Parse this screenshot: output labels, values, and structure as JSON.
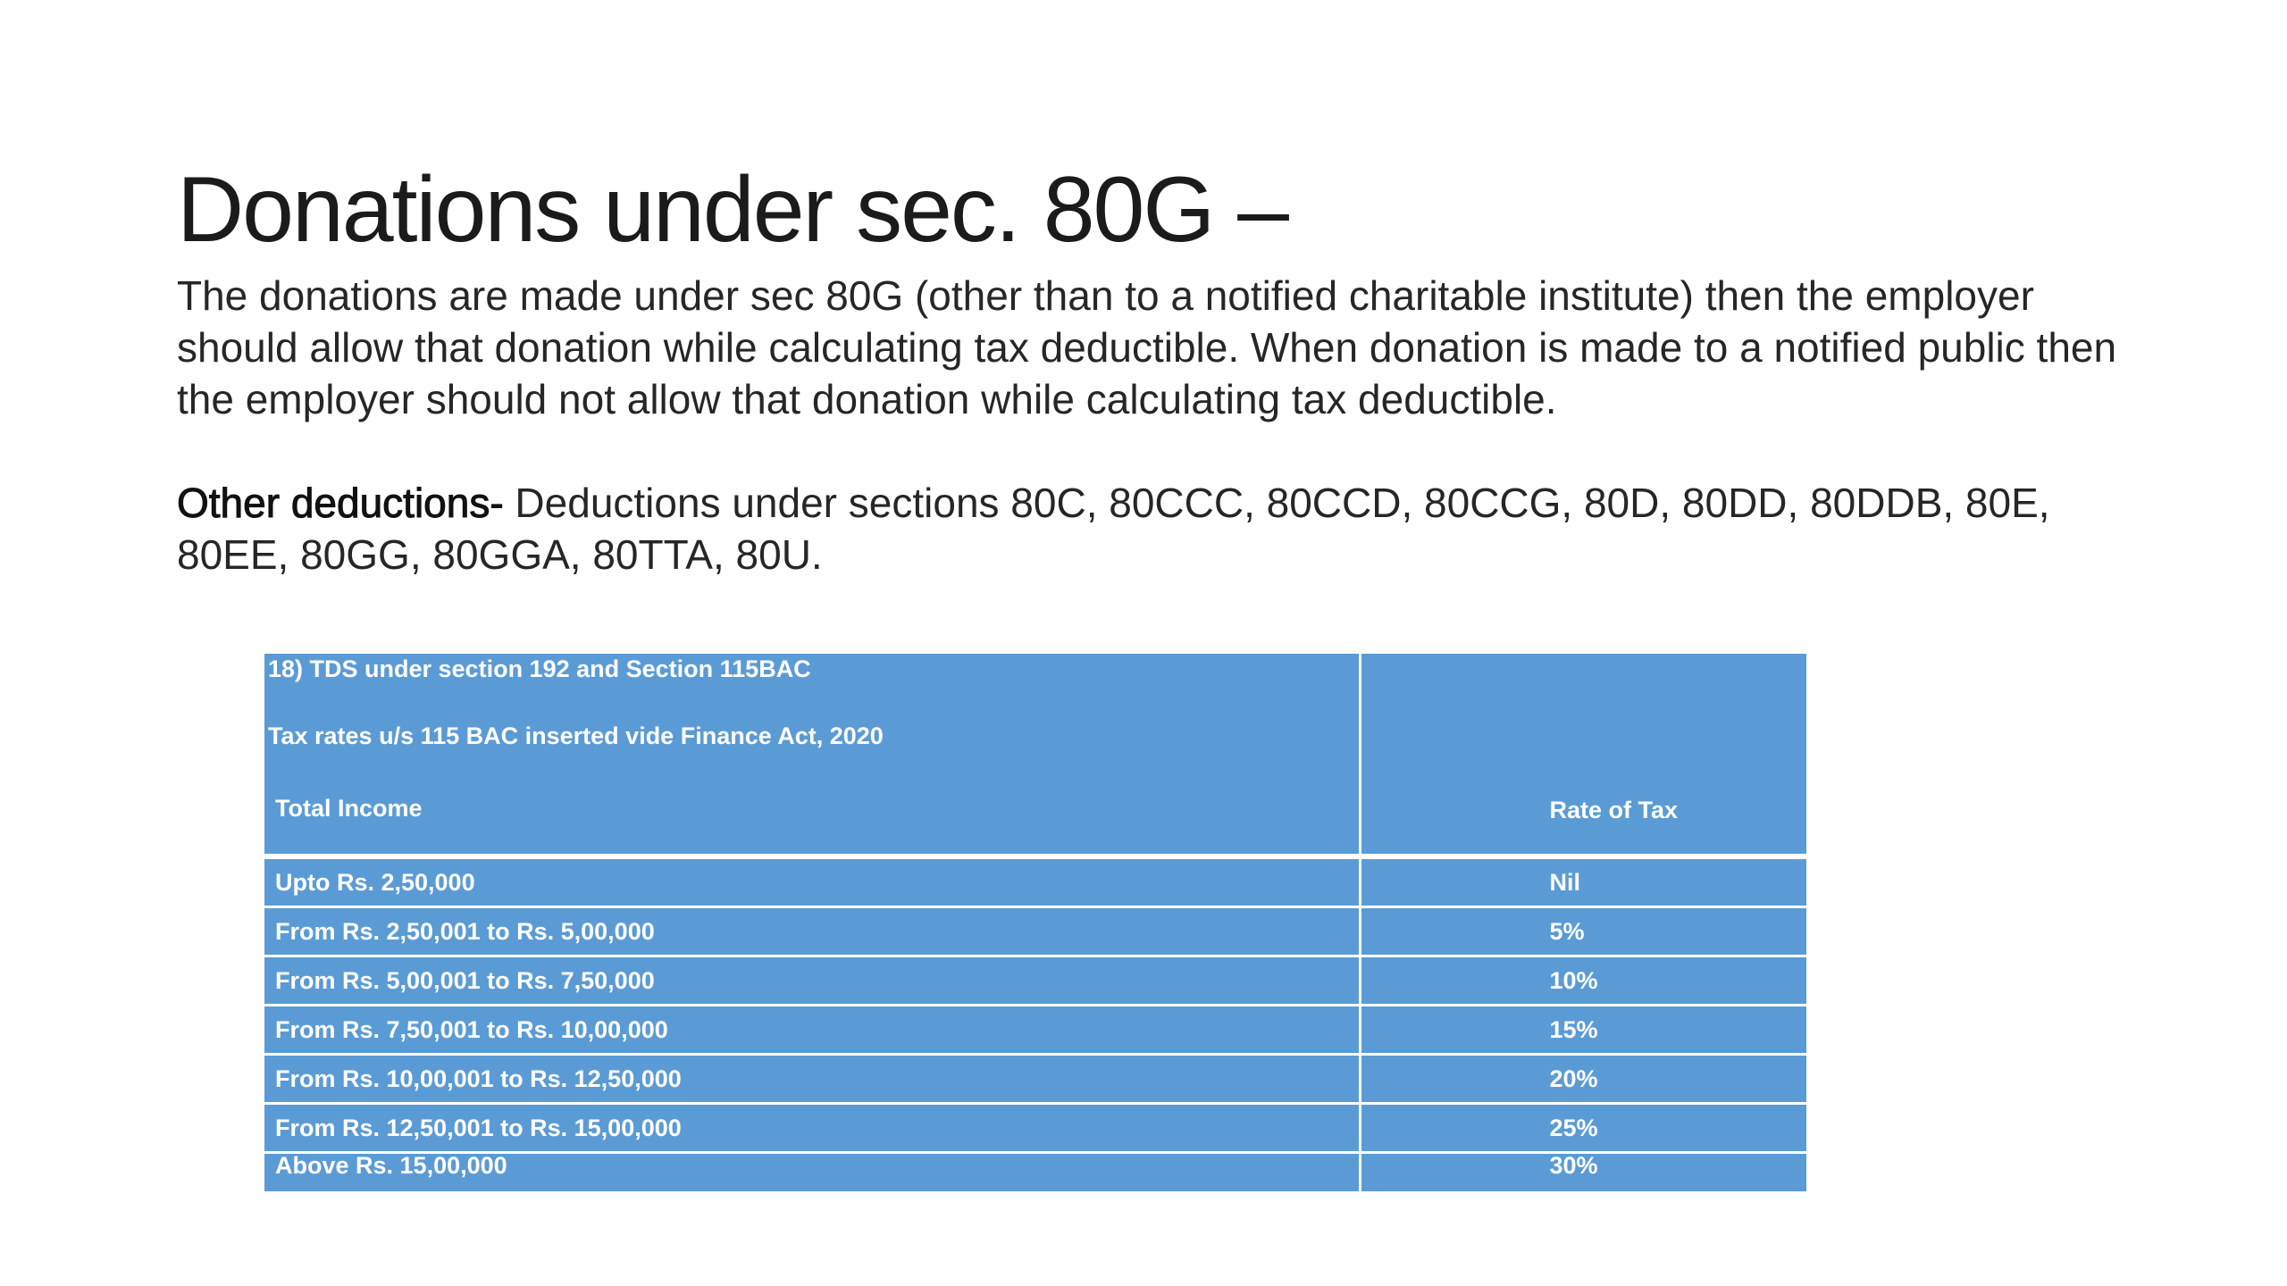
{
  "slide": {
    "title": "Donations under sec. 80G –",
    "paragraph1": "The donations are made under sec 80G (other than to a notified charitable institute) then the employer should allow that donation while calculating tax deductible. When donation is made to a notified public then the employer should not allow that donation while calculating tax deductible.",
    "other_deductions_lead": "Other deductions-",
    "other_deductions_text": " Deductions under sections 80C, 80CCC, 80CCD, 80CCG, 80D, 80DD, 80DDB, 80E, 80EE, 80GG, 80GGA, 80TTA, 80U."
  },
  "table": {
    "colors": {
      "cell_background": "#5b9bd5",
      "text": "#ffffff",
      "grid": "#ffffff"
    },
    "header": {
      "line1": "18) TDS under section 192 and Section 115BAC",
      "line2": "Tax rates u/s 115 BAC inserted vide Finance Act, 2020",
      "col_income": "Total Income",
      "col_rate": "Rate of Tax"
    },
    "rows": [
      {
        "income": "Upto Rs. 2,50,000",
        "rate": "Nil"
      },
      {
        "income": "From Rs. 2,50,001 to Rs. 5,00,000",
        "rate": "5%"
      },
      {
        "income": "From Rs. 5,00,001 to Rs. 7,50,000",
        "rate": "10%"
      },
      {
        "income": "From Rs. 7,50,001 to Rs. 10,00,000",
        "rate": "15%"
      },
      {
        "income": "From Rs. 10,00,001 to Rs. 12,50,000",
        "rate": "20%"
      },
      {
        "income": "From Rs. 12,50,001 to Rs. 15,00,000",
        "rate": "25%"
      },
      {
        "income": "Above Rs. 15,00,000",
        "rate": "30%"
      }
    ]
  }
}
